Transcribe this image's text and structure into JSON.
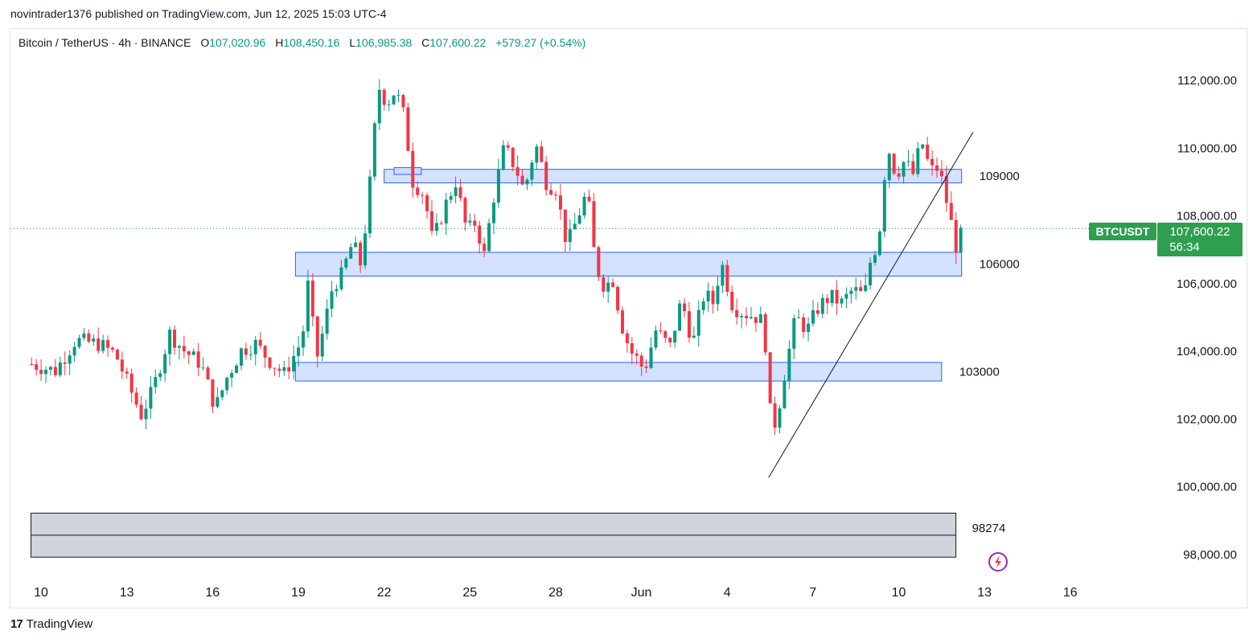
{
  "header": {
    "published_line": "novintrader1376 published on TradingView.com, Jun 12, 2025 15:03 UTC-4"
  },
  "legend": {
    "symbol": "Bitcoin / TetherUS · 4h · BINANCE",
    "open_label": "O",
    "open": "107,020.96",
    "high_label": "H",
    "high": "108,450.16",
    "low_label": "L",
    "low": "106,985.38",
    "close_label": "C",
    "close": "107,600.22",
    "change": "+579.27 (+0.54%)"
  },
  "price_tag": {
    "symbol": "BTCUSDT",
    "price": "107,600.22",
    "countdown": "56:34"
  },
  "footer": {
    "brand": "TradingView",
    "logo_mark": "17"
  },
  "colors": {
    "up": "#089981",
    "down": "#f23645",
    "zone_fill": "#cddcff",
    "zone_stroke": "#2962ff",
    "grey_zone": "#d1d4dc",
    "tag_bg": "#2e9e4f",
    "axis_text": "#131722"
  },
  "chart_data": {
    "type": "candlestick",
    "title": "Bitcoin / TetherUS · 4h · BINANCE",
    "timeframe": "4h",
    "ylim": [
      97000,
      113000
    ],
    "x_range_days": [
      9.65,
      16.8
    ],
    "x_ticks": [
      {
        "label": "10",
        "day": 10
      },
      {
        "label": "13",
        "day": 13
      },
      {
        "label": "16",
        "day": 16
      },
      {
        "label": "19",
        "day": 19
      },
      {
        "label": "22",
        "day": 22
      },
      {
        "label": "25",
        "day": 25
      },
      {
        "label": "28",
        "day": 28
      },
      {
        "label": "Jun",
        "day": 31
      },
      {
        "label": "4",
        "day": 34
      },
      {
        "label": "7",
        "day": 37
      },
      {
        "label": "10",
        "day": 40
      },
      {
        "label": "13",
        "day": 43
      },
      {
        "label": "16",
        "day": 46
      }
    ],
    "y_ticks": [
      "112,000.00",
      "110,000.00",
      "108,000.00",
      "106,000.00",
      "104,000.00",
      "102,000.00",
      "100,000.00",
      "98,000.00"
    ],
    "y_tick_values": [
      112000,
      110000,
      108000,
      106000,
      104000,
      102000,
      100000,
      98000
    ],
    "current_price": 107600.22,
    "zones": [
      {
        "label": "109000",
        "low": 108950,
        "high": 109350,
        "start_day": 22.0,
        "end_day": 42.2
      },
      {
        "label": "106000",
        "low": 106200,
        "high": 106900,
        "start_day": 18.9,
        "end_day": 42.2
      },
      {
        "label": "103000",
        "low": 103100,
        "high": 103650,
        "start_day": 18.9,
        "end_day": 41.5
      }
    ],
    "grey_zone": {
      "label": "98274",
      "low": 97900,
      "high": 99200,
      "split": 98550,
      "start_day": 9.65,
      "end_day": 42.0
    },
    "trendline": {
      "points": [
        {
          "day": 35.45,
          "price": 100250
        },
        {
          "day": 42.6,
          "price": 110450
        }
      ]
    },
    "anchors": [
      {
        "day": 9.67,
        "price": 103600
      },
      {
        "day": 10.5,
        "price": 103400
      },
      {
        "day": 11.2,
        "price": 104300
      },
      {
        "day": 12.0,
        "price": 104200
      },
      {
        "day": 12.6,
        "price": 103900
      },
      {
        "day": 13.1,
        "price": 102900
      },
      {
        "day": 13.5,
        "price": 102100
      },
      {
        "day": 13.9,
        "price": 102800
      },
      {
        "day": 14.5,
        "price": 104500
      },
      {
        "day": 15.0,
        "price": 104000
      },
      {
        "day": 15.6,
        "price": 103600
      },
      {
        "day": 16.1,
        "price": 102300
      },
      {
        "day": 16.5,
        "price": 103200
      },
      {
        "day": 17.0,
        "price": 104000
      },
      {
        "day": 17.5,
        "price": 104200
      },
      {
        "day": 18.0,
        "price": 103700
      },
      {
        "day": 18.5,
        "price": 103300
      },
      {
        "day": 19.0,
        "price": 104100
      },
      {
        "day": 19.3,
        "price": 105000
      },
      {
        "day": 19.0,
        "price": 105500
      },
      {
        "day": 19.4,
        "price": 106000
      },
      {
        "day": 19.6,
        "price": 103600
      },
      {
        "day": 19.9,
        "price": 104700
      },
      {
        "day": 20.2,
        "price": 105900
      },
      {
        "day": 20.5,
        "price": 106200
      },
      {
        "day": 20.9,
        "price": 107200
      },
      {
        "day": 21.2,
        "price": 106500
      },
      {
        "day": 21.5,
        "price": 108900
      },
      {
        "day": 21.8,
        "price": 111800
      },
      {
        "day": 22.1,
        "price": 111300
      },
      {
        "day": 22.4,
        "price": 111700
      },
      {
        "day": 22.7,
        "price": 110900
      },
      {
        "day": 23.0,
        "price": 109000
      },
      {
        "day": 23.4,
        "price": 108600
      },
      {
        "day": 23.7,
        "price": 107200
      },
      {
        "day": 24.1,
        "price": 108200
      },
      {
        "day": 24.5,
        "price": 109000
      },
      {
        "day": 24.9,
        "price": 107500
      },
      {
        "day": 25.2,
        "price": 107800
      },
      {
        "day": 25.5,
        "price": 106800
      },
      {
        "day": 25.8,
        "price": 108400
      },
      {
        "day": 26.2,
        "price": 110000
      },
      {
        "day": 26.6,
        "price": 109400
      },
      {
        "day": 26.9,
        "price": 108700
      },
      {
        "day": 27.3,
        "price": 110100
      },
      {
        "day": 27.7,
        "price": 108900
      },
      {
        "day": 28.0,
        "price": 108800
      },
      {
        "day": 28.4,
        "price": 107100
      },
      {
        "day": 28.8,
        "price": 108000
      },
      {
        "day": 29.1,
        "price": 108700
      },
      {
        "day": 29.4,
        "price": 106500
      },
      {
        "day": 29.7,
        "price": 105900
      },
      {
        "day": 30.0,
        "price": 106100
      },
      {
        "day": 30.3,
        "price": 104800
      },
      {
        "day": 30.6,
        "price": 104000
      },
      {
        "day": 30.9,
        "price": 103700
      },
      {
        "day": 31.1,
        "price": 103400
      },
      {
        "day": 31.5,
        "price": 104600
      },
      {
        "day": 32.0,
        "price": 104100
      },
      {
        "day": 32.4,
        "price": 105500
      },
      {
        "day": 32.8,
        "price": 104200
      },
      {
        "day": 33.2,
        "price": 105700
      },
      {
        "day": 33.5,
        "price": 105400
      },
      {
        "day": 33.8,
        "price": 106600
      },
      {
        "day": 34.2,
        "price": 105300
      },
      {
        "day": 34.6,
        "price": 105100
      },
      {
        "day": 35.0,
        "price": 105000
      },
      {
        "day": 35.3,
        "price": 104800
      },
      {
        "day": 35.45,
        "price": 102300
      },
      {
        "day": 35.7,
        "price": 101800
      },
      {
        "day": 36.0,
        "price": 103300
      },
      {
        "day": 36.4,
        "price": 105000
      },
      {
        "day": 36.8,
        "price": 104600
      },
      {
        "day": 37.2,
        "price": 105300
      },
      {
        "day": 37.6,
        "price": 105600
      },
      {
        "day": 38.0,
        "price": 105400
      },
      {
        "day": 38.4,
        "price": 105800
      },
      {
        "day": 38.8,
        "price": 105600
      },
      {
        "day": 39.0,
        "price": 106600
      },
      {
        "day": 39.3,
        "price": 107300
      },
      {
        "day": 39.6,
        "price": 110100
      },
      {
        "day": 39.9,
        "price": 109200
      },
      {
        "day": 40.2,
        "price": 109600
      },
      {
        "day": 40.5,
        "price": 109200
      },
      {
        "day": 40.8,
        "price": 110200
      },
      {
        "day": 41.1,
        "price": 109300
      },
      {
        "day": 41.4,
        "price": 109400
      },
      {
        "day": 41.7,
        "price": 108300
      },
      {
        "day": 42.0,
        "price": 107100
      },
      {
        "day": 42.3,
        "price": 107600
      }
    ]
  }
}
